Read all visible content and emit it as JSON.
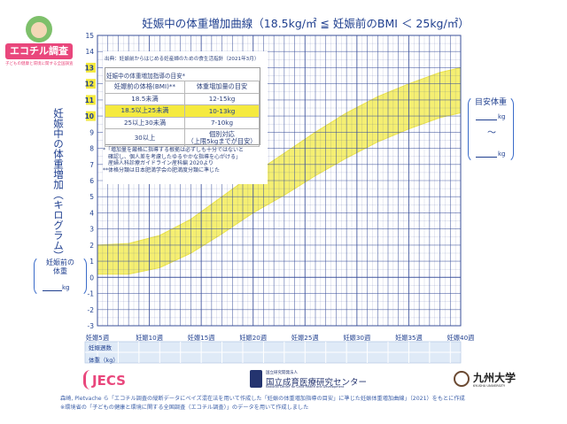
{
  "brand_logo": {
    "name": "エコチル調査",
    "tagline": "子どもの健康と環境に関する全国調査"
  },
  "title": "妊娠中の体重増加曲線（18.5kg/㎡ ≦ 妊娠前のBMI ＜ 25kg/㎡）",
  "source": "出典：妊娠前からはじめる妊産婦のための食生活指針（2021年3月）",
  "guide": {
    "title": "妊娠中の体重増加指導の目安*",
    "headers": [
      "妊娠前の体格(BMI)**",
      "体重増加量の目安"
    ],
    "rows": [
      {
        "bmi": "18.5未満",
        "gain": "12-15kg",
        "highlight": false
      },
      {
        "bmi": "18.5以上25未満",
        "gain": "10-13kg",
        "highlight": true
      },
      {
        "bmi": "25以上30未満",
        "gain": "7-10kg",
        "highlight": false
      },
      {
        "bmi": "30以上",
        "gain": "個別対応\n（上限5kgまでが目安）",
        "highlight": false
      }
    ],
    "notes": [
      "*「増加量を厳格に指導する根拠は必ずしも十分ではないと",
      "　確認し、個人差を考慮したゆるやかな指導を心がける」",
      "　産婦人科診療ガイドライン産科編 2020より",
      "**体格分類は日本肥満学会の肥満度分類に準じた"
    ]
  },
  "y_axis_label": "妊娠中の体重増加（キログラム）",
  "pre_weight_box": {
    "label_line1": "妊娠前の",
    "label_line2": "体重",
    "unit": "kg"
  },
  "target_box": {
    "label": "目安体重",
    "unit1": "kg",
    "separator": "〜",
    "unit2": "kg"
  },
  "bottom_rows": {
    "row1": "妊娠週数",
    "row2": "体重（kg）"
  },
  "footnote": [
    "森崎, Pletvache ら「エコチル調査の縦断データにベイズ混在法を用いて作成した「妊娠の体重増加指導の目安」に準じた妊娠体重増加曲線」（2021）をもとに作成",
    "※環境省の「子どもの健康と環境に関する全国調査（エコチル調査）」のデータを用いて作成しました"
  ],
  "logos": {
    "jecs": "JECS",
    "ncchd_small": "国立研究開発法人",
    "ncchd_main": "国立成育医療研究センター",
    "ncchd_eng": "National Center for Child Health and Development",
    "kyushu_main": "九州大学",
    "kyushu_eng": "KYUSHU UNIVERSITY"
  },
  "colors": {
    "band": "#f5ef72",
    "band_edge": "#ece34a",
    "grid": "#3a4f9a",
    "label": "#1f3f8f",
    "highlight": "#f5ea3f",
    "pink": "#e9477c"
  },
  "chart_data": {
    "type": "area",
    "title": "妊娠中の体重増加曲線（18.5kg/㎡ ≦ 妊娠前のBMI ＜ 25kg/㎡）",
    "xlabel": "妊娠週数",
    "ylabel": "妊娠中の体重増加（キログラム）",
    "xlim": [
      5,
      40
    ],
    "ylim": [
      -3,
      15
    ],
    "x_ticks": [
      5,
      10,
      15,
      20,
      25,
      30,
      35,
      40
    ],
    "x_tick_labels": [
      "妊娠5週",
      "妊娠10週",
      "妊娠15週",
      "妊娠20週",
      "妊娠25週",
      "妊娠30週",
      "妊娠35週",
      "妊娠40週"
    ],
    "y_ticks": [
      -3,
      -2,
      -1,
      0,
      1,
      2,
      3,
      4,
      5,
      6,
      7,
      8,
      9,
      10,
      11,
      12,
      13,
      14,
      15
    ],
    "y_highlight_ticks": [
      10,
      11,
      12,
      13
    ],
    "grid": true,
    "series": [
      {
        "x": [
          5,
          8,
          11,
          14,
          17,
          20,
          23,
          26,
          29,
          32,
          35,
          38,
          40
        ],
        "lower": [
          0.2,
          0.2,
          0.6,
          1.5,
          2.7,
          4.0,
          5.1,
          6.3,
          7.4,
          8.4,
          9.2,
          9.9,
          10.2
        ],
        "upper": [
          2.0,
          2.1,
          2.6,
          3.6,
          5.0,
          6.4,
          7.7,
          9.0,
          10.2,
          11.2,
          12.0,
          12.7,
          13.0
        ]
      }
    ]
  }
}
